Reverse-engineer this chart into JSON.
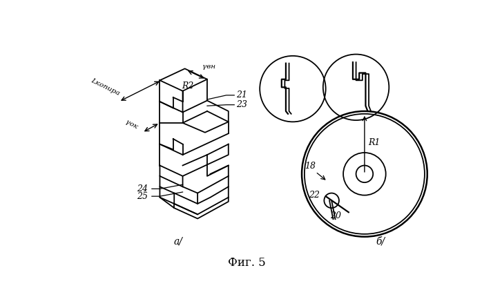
{
  "bg_color": "#ffffff",
  "line_color": "#000000",
  "title": "Фиг. 5",
  "label_a": "а/",
  "label_b": "б/",
  "labels": {
    "L_kopira": "Lкопира",
    "gamma_vn": "γвн",
    "gamma_ok": "γок",
    "R1": "R1",
    "R2": "R2",
    "n21": "21",
    "n22": "22",
    "n23": "23",
    "n24": "24",
    "n25": "25",
    "n18": "18",
    "n20": "20"
  },
  "figsize": [
    6.98,
    4.43
  ],
  "dpi": 100
}
